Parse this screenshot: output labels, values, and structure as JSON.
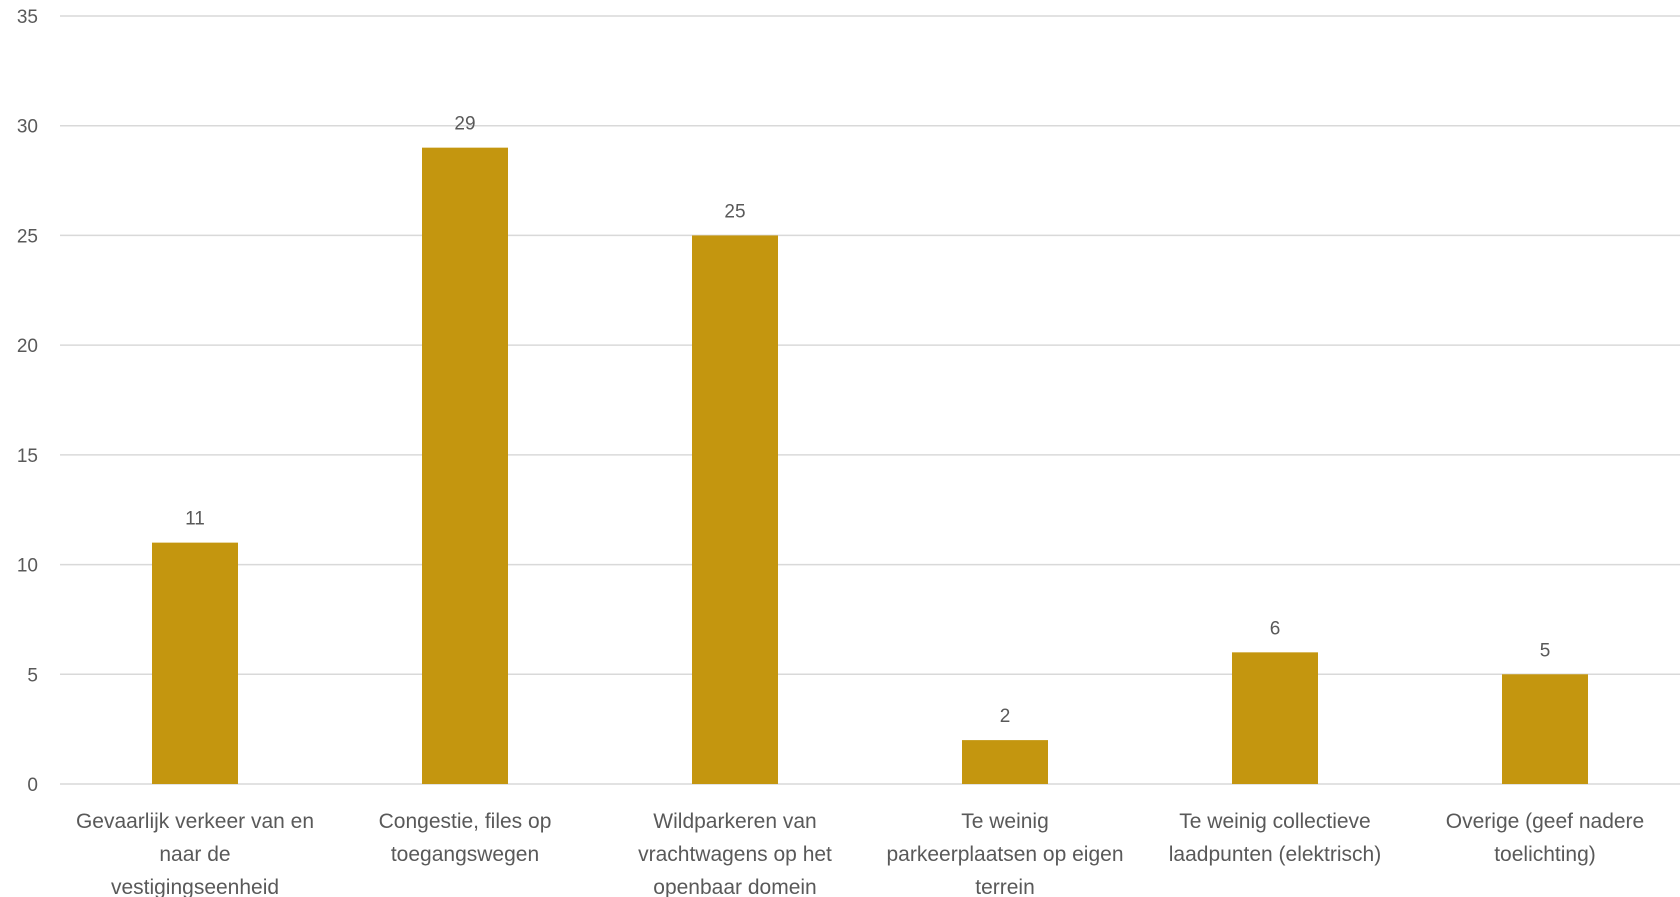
{
  "chart_data": {
    "type": "bar",
    "categories": [
      [
        "Gevaarlijk verkeer van en",
        "naar de",
        "vestigingseenheid"
      ],
      [
        "Congestie, files op",
        "toegangswegen"
      ],
      [
        "Wildparkeren van",
        "vrachtwagens op het",
        "openbaar domein"
      ],
      [
        "Te weinig",
        "parkeerplaatsen op eigen",
        "terrein"
      ],
      [
        "Te weinig collectieve",
        "laadpunten (elektrisch)"
      ],
      [
        "Overige (geef nadere",
        "toelichting)"
      ]
    ],
    "values": [
      11,
      29,
      25,
      2,
      6,
      5
    ],
    "ylim": [
      0,
      35
    ],
    "yticks": [
      0,
      5,
      10,
      15,
      20,
      25,
      30,
      35
    ],
    "grid": true,
    "legend": "none",
    "bar_color": "#c4960f",
    "title": "",
    "xlabel": "",
    "ylabel": ""
  }
}
